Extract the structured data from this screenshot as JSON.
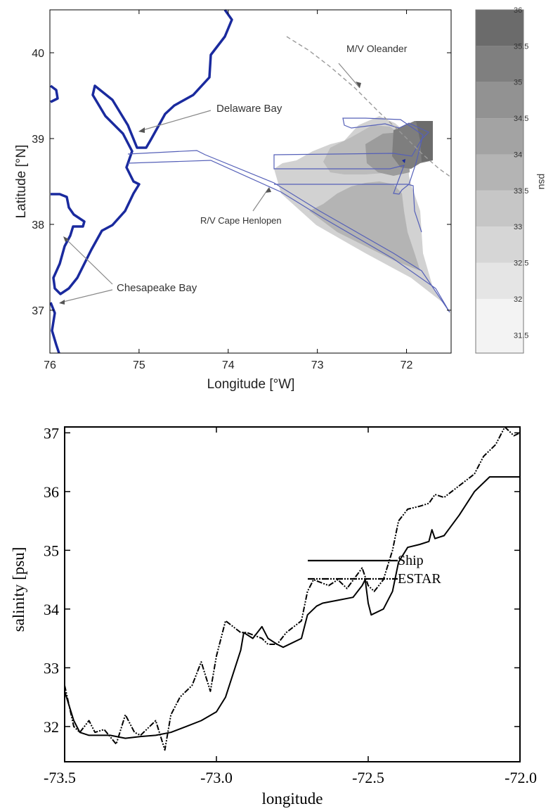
{
  "map": {
    "xlabel": "Longitude [°W]",
    "ylabel": "Latitude [°N]",
    "xlim": [
      76,
      71.5
    ],
    "ylim": [
      36.5,
      40.5
    ],
    "x_ticks": [
      "76",
      "75",
      "74",
      "73",
      "72"
    ],
    "y_ticks": [
      "37",
      "38",
      "39",
      "40"
    ],
    "annotations": [
      "M/V Oleander",
      "Delaware Bay",
      "R/V Cape Henlopen",
      "Chesapeake Bay"
    ],
    "colorbar": {
      "label": "psu",
      "ticks": [
        "31.5",
        "32",
        "32.5",
        "33",
        "33.5",
        "34",
        "34.5",
        "35",
        "35.5",
        "36"
      ],
      "range": [
        31.25,
        36.0
      ]
    },
    "colors": {
      "coastline": "#1a2a9e",
      "track": "#5560b8",
      "oleander": "#9a9a9a"
    }
  },
  "chart_data": {
    "type": "line",
    "title": "",
    "xlabel": "longitude",
    "ylabel": "salinity [psu]",
    "xlim": [
      -73.5,
      -72.0
    ],
    "ylim": [
      31.4,
      37.1
    ],
    "x_ticks": [
      "-73.5",
      "-73.0",
      "-72.5",
      "-72.0"
    ],
    "y_ticks": [
      "32",
      "33",
      "34",
      "35",
      "36",
      "37"
    ],
    "legend_placement": "lower-right",
    "series": [
      {
        "name": "Ship",
        "style": "solid",
        "x": [
          -73.5,
          -73.47,
          -73.45,
          -73.42,
          -73.35,
          -73.3,
          -73.25,
          -73.2,
          -73.15,
          -73.1,
          -73.05,
          -73.0,
          -72.97,
          -72.92,
          -72.91,
          -72.88,
          -72.85,
          -72.83,
          -72.8,
          -72.78,
          -72.72,
          -72.7,
          -72.67,
          -72.65,
          -72.6,
          -72.55,
          -72.52,
          -72.51,
          -72.5,
          -72.49,
          -72.45,
          -72.42,
          -72.4,
          -72.37,
          -72.33,
          -72.3,
          -72.29,
          -72.28,
          -72.25,
          -72.2,
          -72.15,
          -72.1,
          -72.05,
          -72.0
        ],
        "y": [
          32.6,
          32.1,
          31.9,
          31.85,
          31.85,
          31.8,
          31.83,
          31.85,
          31.9,
          32.0,
          32.1,
          32.25,
          32.5,
          33.3,
          33.6,
          33.5,
          33.7,
          33.5,
          33.4,
          33.35,
          33.5,
          33.9,
          34.05,
          34.1,
          34.15,
          34.2,
          34.4,
          34.5,
          34.1,
          33.9,
          34.0,
          34.3,
          34.8,
          35.05,
          35.1,
          35.15,
          35.35,
          35.2,
          35.25,
          35.6,
          36.0,
          36.25,
          36.25,
          36.25
        ]
      },
      {
        "name": "ESTAR",
        "style": "dash-dot",
        "x": [
          -73.5,
          -73.47,
          -73.45,
          -73.42,
          -73.4,
          -73.37,
          -73.33,
          -73.3,
          -73.27,
          -73.25,
          -73.2,
          -73.17,
          -73.15,
          -73.12,
          -73.08,
          -73.05,
          -73.02,
          -73.0,
          -72.97,
          -72.92,
          -72.9,
          -72.85,
          -72.83,
          -72.8,
          -72.77,
          -72.72,
          -72.7,
          -72.68,
          -72.63,
          -72.6,
          -72.57,
          -72.52,
          -72.5,
          -72.48,
          -72.45,
          -72.42,
          -72.4,
          -72.37,
          -72.33,
          -72.3,
          -72.28,
          -72.25,
          -72.2,
          -72.15,
          -72.12,
          -72.08,
          -72.05,
          -72.02,
          -72.0
        ],
        "y": [
          32.7,
          32.0,
          31.9,
          32.1,
          31.9,
          31.95,
          31.7,
          32.2,
          31.9,
          31.85,
          32.1,
          31.6,
          32.2,
          32.5,
          32.7,
          33.1,
          32.6,
          33.2,
          33.8,
          33.6,
          33.6,
          33.5,
          33.4,
          33.4,
          33.6,
          33.8,
          34.3,
          34.5,
          34.4,
          34.5,
          34.35,
          34.7,
          34.4,
          34.3,
          34.5,
          35.0,
          35.5,
          35.7,
          35.75,
          35.8,
          35.95,
          35.9,
          36.1,
          36.3,
          36.6,
          36.8,
          37.1,
          36.95,
          37.0
        ]
      }
    ]
  }
}
